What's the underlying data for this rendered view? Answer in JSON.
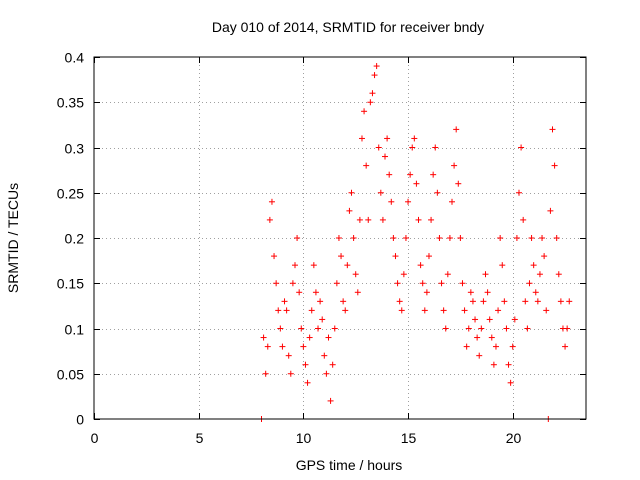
{
  "chart_data": {
    "type": "scatter",
    "title": "Day 010 of 2014, SRMTID for receiver bndy",
    "xlabel": "GPS time / hours",
    "ylabel": "SRMTID / TECUs",
    "xlim": [
      0,
      23.5
    ],
    "ylim": [
      0,
      0.4
    ],
    "x_ticks": [
      0,
      5,
      10,
      15,
      20
    ],
    "x_tick_labels": [
      "0",
      "5",
      "10",
      "15",
      "20"
    ],
    "y_ticks": [
      0,
      0.05,
      0.1,
      0.15,
      0.2,
      0.25,
      0.3,
      0.35,
      0.4
    ],
    "y_tick_labels": [
      "0",
      "0.05",
      "0.1",
      "0.15",
      "0.2",
      "0.25",
      "0.3",
      "0.35",
      "0.4"
    ],
    "grid": true,
    "marker": "+",
    "series": [
      {
        "name": "SRMTID",
        "color": "#ff0000",
        "points": [
          [
            8.0,
            0.0
          ],
          [
            8.1,
            0.09
          ],
          [
            8.2,
            0.05
          ],
          [
            8.3,
            0.08
          ],
          [
            8.4,
            0.22
          ],
          [
            8.5,
            0.24
          ],
          [
            8.6,
            0.18
          ],
          [
            8.7,
            0.15
          ],
          [
            8.8,
            0.12
          ],
          [
            8.9,
            0.1
          ],
          [
            9.0,
            0.08
          ],
          [
            9.1,
            0.13
          ],
          [
            9.2,
            0.12
          ],
          [
            9.3,
            0.07
          ],
          [
            9.4,
            0.05
          ],
          [
            9.5,
            0.15
          ],
          [
            9.6,
            0.17
          ],
          [
            9.7,
            0.2
          ],
          [
            9.8,
            0.14
          ],
          [
            9.9,
            0.1
          ],
          [
            10.0,
            0.08
          ],
          [
            10.1,
            0.06
          ],
          [
            10.2,
            0.04
          ],
          [
            10.3,
            0.09
          ],
          [
            10.4,
            0.12
          ],
          [
            10.5,
            0.17
          ],
          [
            10.6,
            0.14
          ],
          [
            10.7,
            0.1
          ],
          [
            10.8,
            0.13
          ],
          [
            10.9,
            0.11
          ],
          [
            11.0,
            0.07
          ],
          [
            11.1,
            0.05
          ],
          [
            11.2,
            0.09
          ],
          [
            11.3,
            0.02
          ],
          [
            11.4,
            0.06
          ],
          [
            11.5,
            0.1
          ],
          [
            11.6,
            0.15
          ],
          [
            11.7,
            0.2
          ],
          [
            11.8,
            0.18
          ],
          [
            11.9,
            0.13
          ],
          [
            12.0,
            0.12
          ],
          [
            12.1,
            0.17
          ],
          [
            12.2,
            0.23
          ],
          [
            12.3,
            0.25
          ],
          [
            12.4,
            0.2
          ],
          [
            12.5,
            0.16
          ],
          [
            12.6,
            0.14
          ],
          [
            12.7,
            0.22
          ],
          [
            12.8,
            0.31
          ],
          [
            12.9,
            0.34
          ],
          [
            13.0,
            0.28
          ],
          [
            13.1,
            0.22
          ],
          [
            13.2,
            0.35
          ],
          [
            13.3,
            0.36
          ],
          [
            13.4,
            0.38
          ],
          [
            13.5,
            0.39
          ],
          [
            13.6,
            0.3
          ],
          [
            13.7,
            0.25
          ],
          [
            13.8,
            0.22
          ],
          [
            13.9,
            0.29
          ],
          [
            14.0,
            0.31
          ],
          [
            14.1,
            0.27
          ],
          [
            14.2,
            0.24
          ],
          [
            14.3,
            0.2
          ],
          [
            14.4,
            0.18
          ],
          [
            14.5,
            0.15
          ],
          [
            14.6,
            0.13
          ],
          [
            14.7,
            0.12
          ],
          [
            14.8,
            0.16
          ],
          [
            14.9,
            0.2
          ],
          [
            15.0,
            0.24
          ],
          [
            15.1,
            0.27
          ],
          [
            15.2,
            0.3
          ],
          [
            15.3,
            0.31
          ],
          [
            15.4,
            0.26
          ],
          [
            15.5,
            0.22
          ],
          [
            15.6,
            0.17
          ],
          [
            15.7,
            0.15
          ],
          [
            15.8,
            0.12
          ],
          [
            15.9,
            0.14
          ],
          [
            16.0,
            0.18
          ],
          [
            16.1,
            0.22
          ],
          [
            16.2,
            0.27
          ],
          [
            16.3,
            0.3
          ],
          [
            16.4,
            0.25
          ],
          [
            16.5,
            0.2
          ],
          [
            16.6,
            0.15
          ],
          [
            16.7,
            0.12
          ],
          [
            16.8,
            0.1
          ],
          [
            16.9,
            0.16
          ],
          [
            17.0,
            0.2
          ],
          [
            17.1,
            0.24
          ],
          [
            17.2,
            0.28
          ],
          [
            17.3,
            0.32
          ],
          [
            17.4,
            0.26
          ],
          [
            17.5,
            0.2
          ],
          [
            17.6,
            0.15
          ],
          [
            17.7,
            0.12
          ],
          [
            17.8,
            0.08
          ],
          [
            17.9,
            0.1
          ],
          [
            18.0,
            0.14
          ],
          [
            18.1,
            0.13
          ],
          [
            18.2,
            0.11
          ],
          [
            18.3,
            0.09
          ],
          [
            18.4,
            0.07
          ],
          [
            18.5,
            0.1
          ],
          [
            18.6,
            0.13
          ],
          [
            18.7,
            0.16
          ],
          [
            18.8,
            0.14
          ],
          [
            18.9,
            0.11
          ],
          [
            19.0,
            0.09
          ],
          [
            19.1,
            0.06
          ],
          [
            19.2,
            0.08
          ],
          [
            19.3,
            0.12
          ],
          [
            19.4,
            0.2
          ],
          [
            19.5,
            0.17
          ],
          [
            19.6,
            0.13
          ],
          [
            19.7,
            0.1
          ],
          [
            19.8,
            0.06
          ],
          [
            19.9,
            0.04
          ],
          [
            20.0,
            0.08
          ],
          [
            20.1,
            0.11
          ],
          [
            20.2,
            0.2
          ],
          [
            20.3,
            0.25
          ],
          [
            20.4,
            0.3
          ],
          [
            20.5,
            0.22
          ],
          [
            20.6,
            0.13
          ],
          [
            20.7,
            0.1
          ],
          [
            20.8,
            0.15
          ],
          [
            20.9,
            0.2
          ],
          [
            21.0,
            0.17
          ],
          [
            21.1,
            0.14
          ],
          [
            21.2,
            0.13
          ],
          [
            21.3,
            0.16
          ],
          [
            21.4,
            0.2
          ],
          [
            21.5,
            0.18
          ],
          [
            21.6,
            0.12
          ],
          [
            21.7,
            0.0
          ],
          [
            21.8,
            0.23
          ],
          [
            21.9,
            0.32
          ],
          [
            22.0,
            0.28
          ],
          [
            22.1,
            0.2
          ],
          [
            22.2,
            0.16
          ],
          [
            22.3,
            0.13
          ],
          [
            22.4,
            0.1
          ],
          [
            22.5,
            0.08
          ],
          [
            22.6,
            0.1
          ],
          [
            22.7,
            0.13
          ]
        ]
      }
    ]
  }
}
